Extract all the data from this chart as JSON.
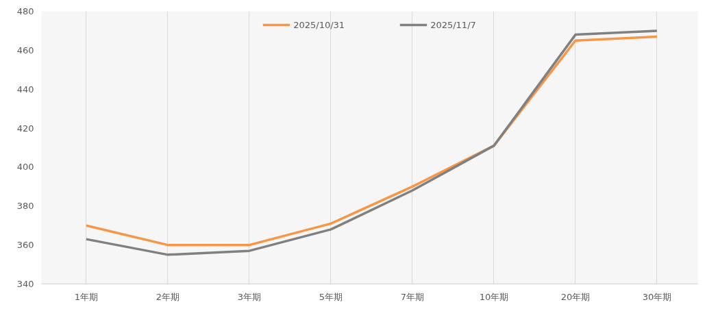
{
  "chart_data": {
    "type": "line",
    "categories": [
      "1年期",
      "2年期",
      "3年期",
      "5年期",
      "7年期",
      "10年期",
      "20年期",
      "30年期"
    ],
    "series": [
      {
        "name": "2025/10/31",
        "color": "#f79646",
        "values": [
          370,
          360,
          360,
          371,
          390,
          411,
          465,
          467
        ]
      },
      {
        "name": "2025/11/7",
        "color": "#808080",
        "values": [
          363,
          355,
          357,
          368,
          388,
          411,
          468,
          470
        ]
      }
    ],
    "ylim": [
      340,
      480
    ],
    "yticks": [
      340,
      360,
      380,
      400,
      420,
      440,
      460,
      480
    ],
    "grid": "x",
    "legend": "top",
    "line_style": "solid",
    "marker": "none"
  }
}
